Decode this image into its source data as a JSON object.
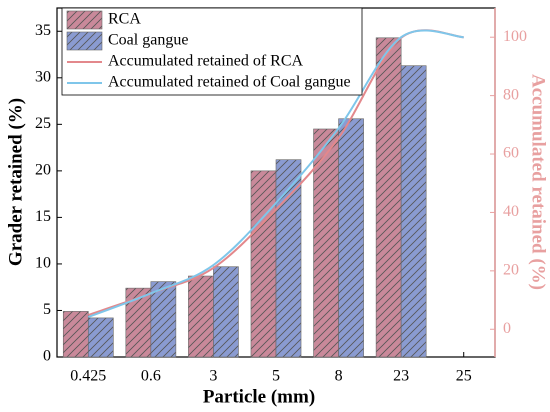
{
  "chart_data": {
    "type": "bar",
    "x_label": "Particle (mm)",
    "y_label": "Grader retained (%)",
    "y2_label": "Accumulated retained (%)",
    "categories": [
      "0.425",
      "0.6",
      "3",
      "5",
      "8",
      "23",
      "25"
    ],
    "series": [
      {
        "name": "RCA",
        "color": "#c9899a",
        "values": [
          4.9,
          7.4,
          8.7,
          20.0,
          24.5,
          34.3,
          null
        ]
      },
      {
        "name": "Coal gangue",
        "color": "#8a9bd1",
        "values": [
          4.2,
          8.1,
          9.7,
          21.2,
          25.6,
          31.3,
          null
        ]
      },
      {
        "name": "Accumulated retained of RCA",
        "type": "line",
        "axis": "y2",
        "color": "#e3888c",
        "values": [
          4.9,
          12.3,
          21.0,
          41.0,
          65.5,
          99.8,
          100
        ]
      },
      {
        "name": "Accumulated retained of Coal gangue",
        "type": "line",
        "axis": "y2",
        "color": "#7fc6ea",
        "values": [
          4.2,
          12.3,
          22.0,
          43.2,
          68.8,
          100,
          100
        ]
      }
    ],
    "ylim": [
      0,
      37.5
    ],
    "yticks": [
      0,
      5,
      10,
      15,
      20,
      25,
      30,
      35
    ],
    "y2lim": [
      -9.5,
      110
    ],
    "y2ticks": [
      0,
      20,
      40,
      60,
      80,
      100
    ],
    "y2_color": "#e8a0a0",
    "legend": "upper left"
  }
}
